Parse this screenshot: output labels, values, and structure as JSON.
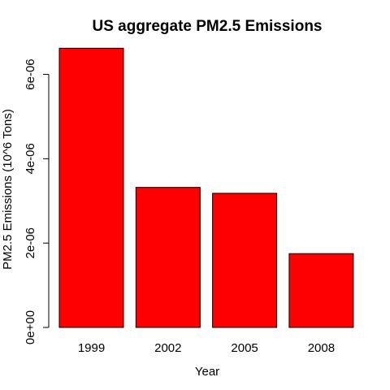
{
  "chart_data": {
    "type": "bar",
    "title": "US aggregate PM2.5 Emissions",
    "xlabel": "Year",
    "ylabel": "PM2.5 Emissions (10^6 Tons)",
    "categories": [
      "1999",
      "2002",
      "2005",
      "2008"
    ],
    "values": [
      6.62e-06,
      3.32e-06,
      3.18e-06,
      1.75e-06
    ],
    "ylim": [
      0,
      6.8e-06
    ],
    "yticks": [
      0,
      2e-06,
      4e-06,
      6e-06
    ],
    "ytick_labels": [
      "0e+00",
      "2e-06",
      "4e-06",
      "6e-06"
    ],
    "bar_color": "#ff0000",
    "grid": false,
    "legend": "none"
  }
}
